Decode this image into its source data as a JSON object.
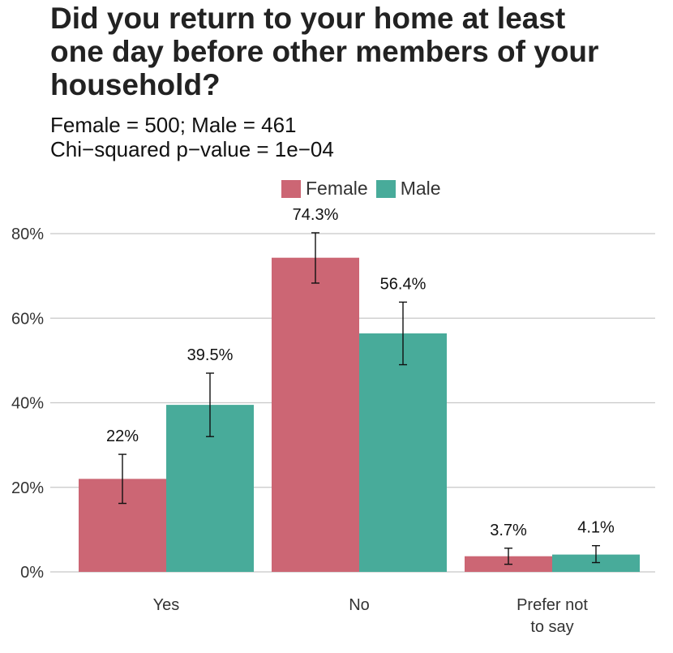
{
  "title_lines": [
    "Did you return to your home at least",
    "one day before other members of your",
    "household?"
  ],
  "subtitle_lines": [
    "Female = 500; Male = 461",
    "Chi−squared p−value = 1e−04"
  ],
  "legend": [
    {
      "name": "Female",
      "color": "#cc6674"
    },
    {
      "name": "Male",
      "color": "#48ab9a"
    }
  ],
  "chart_data": {
    "type": "bar",
    "title": "Did you return to your home at least one day before other members of your household?",
    "subtitle": "Female = 500; Male = 461 / Chi−squared p−value = 1e−04",
    "categories": [
      [
        "Yes"
      ],
      [
        "No"
      ],
      [
        "Prefer not",
        "to say"
      ]
    ],
    "series": [
      {
        "name": "Female",
        "color": "#cc6674",
        "values": [
          22,
          74.3,
          3.7
        ],
        "labels": [
          "22%",
          "74.3%",
          "3.7%"
        ],
        "error_low": [
          16.2,
          68.3,
          1.8
        ],
        "error_high": [
          27.8,
          80.2,
          5.6
        ]
      },
      {
        "name": "Male",
        "color": "#48ab9a",
        "values": [
          39.5,
          56.4,
          4.1
        ],
        "labels": [
          "39.5%",
          "56.4%",
          "4.1%"
        ],
        "error_low": [
          32.0,
          49.0,
          2.2
        ],
        "error_high": [
          47.0,
          63.8,
          6.2
        ]
      }
    ],
    "y_ticks": [
      0,
      20,
      40,
      60,
      80
    ],
    "y_tick_labels": [
      "0%",
      "20%",
      "40%",
      "60%",
      "80%"
    ],
    "ylim": [
      0,
      80
    ],
    "grid": "horizontal",
    "legend_position": "top"
  }
}
